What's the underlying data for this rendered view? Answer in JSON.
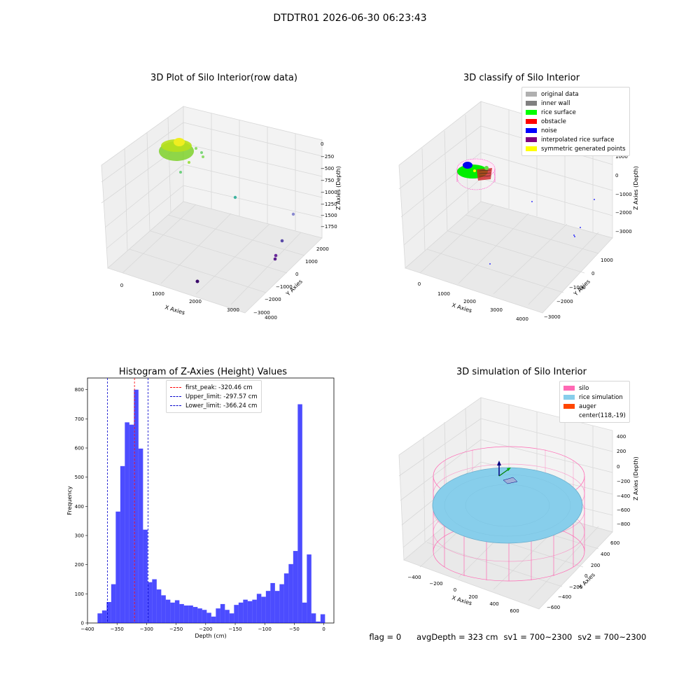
{
  "figure": {
    "title": "DTDTR01 2026-06-30 06:23:43"
  },
  "panels": {
    "raw": {
      "title": "3D Plot of Silo Interior(row data)",
      "xlabel": "X Axies",
      "ylabel": "Y Axies",
      "zlabel": "Z Axies (Depth)",
      "xticks": [
        "0",
        "1000",
        "2000",
        "3000",
        "4000"
      ],
      "yticks": [
        "2000",
        "1000",
        "0",
        "−1000",
        "−2000",
        "−3000"
      ],
      "zticks": [
        "0",
        "−250",
        "−500",
        "−750",
        "−1000",
        "−1250",
        "−1500",
        "−1750"
      ]
    },
    "classify": {
      "title": "3D classify of Silo Interior",
      "xlabel": "X Axies",
      "ylabel": "Y Axies",
      "zlabel": "Z Axies (Depth)",
      "xticks": [
        "0",
        "1000",
        "2000",
        "3000",
        "4000"
      ],
      "yticks": [
        "1000",
        "0",
        "−1000",
        "−2000",
        "−3000"
      ],
      "zticks": [
        "1000",
        "0",
        "−1000",
        "−2000",
        "−3000"
      ],
      "legend": [
        {
          "label": "original data",
          "color": "#b0b0b0"
        },
        {
          "label": "inner wall",
          "color": "#808080"
        },
        {
          "label": "rice surface",
          "color": "#00ff00"
        },
        {
          "label": "obstacle",
          "color": "#ff0000"
        },
        {
          "label": "noise",
          "color": "#0000ff"
        },
        {
          "label": "interpolated rice surface",
          "color": "#800080"
        },
        {
          "label": "symmetric generated points",
          "color": "#ffff00"
        }
      ]
    },
    "simulation": {
      "title": "3D simulation of Silo Interior",
      "xlabel": "X Axies",
      "ylabel": "Y Axies",
      "zlabel": "Z Axies (Depth)",
      "xticks": [
        "−400",
        "−200",
        "0",
        "200",
        "400",
        "600"
      ],
      "yticks": [
        "600",
        "400",
        "200",
        "0",
        "−200",
        "−400",
        "−600"
      ],
      "zticks": [
        "400",
        "200",
        "0",
        "−200",
        "−400",
        "−600",
        "−800"
      ],
      "legend": [
        {
          "label": "silo",
          "color": "#ff69b4"
        },
        {
          "label": "rice simulation",
          "color": "#87ceeb"
        },
        {
          "label": "auger",
          "color": "#ff4500"
        },
        {
          "label": "center(118,-19)",
          "color": ""
        }
      ]
    }
  },
  "status": {
    "flag": "flag = 0",
    "avg_depth": "avgDepth = 323 cm",
    "sv1": "sv1 = 700~2300",
    "sv2": "sv2 = 700~2300"
  },
  "chart_data": {
    "type": "bar",
    "title": "Histogram of Z-Axies (Height) Values",
    "xlabel": "Depth (cm)",
    "ylabel": "Frequency",
    "xlim": [
      -400,
      17
    ],
    "ylim": [
      0,
      840
    ],
    "xticks": [
      -400,
      -350,
      -300,
      -250,
      -200,
      -150,
      -100,
      -50,
      0
    ],
    "yticks": [
      0,
      100,
      200,
      300,
      400,
      500,
      600,
      700,
      800
    ],
    "bin_start": -383,
    "bin_width": 7.7,
    "bar_color": "#0000ff",
    "values": [
      33,
      43,
      72,
      133,
      382,
      538,
      688,
      680,
      800,
      598,
      320,
      140,
      150,
      115,
      95,
      80,
      70,
      78,
      65,
      60,
      60,
      55,
      50,
      45,
      35,
      22,
      50,
      65,
      45,
      33,
      62,
      70,
      80,
      75,
      80,
      100,
      90,
      110,
      137,
      110,
      133,
      170,
      202,
      247,
      750,
      70,
      235,
      33,
      5,
      30
    ],
    "vlines": [
      {
        "label": "first_peak: -320.46 cm",
        "x": -320.46,
        "color": "#ff0000"
      },
      {
        "label": "Upper_limit: -297.57 cm",
        "x": -297.57,
        "color": "#0000cc"
      },
      {
        "label": "Lower_limit: -366.24 cm",
        "x": -366.24,
        "color": "#0000cc"
      }
    ]
  }
}
